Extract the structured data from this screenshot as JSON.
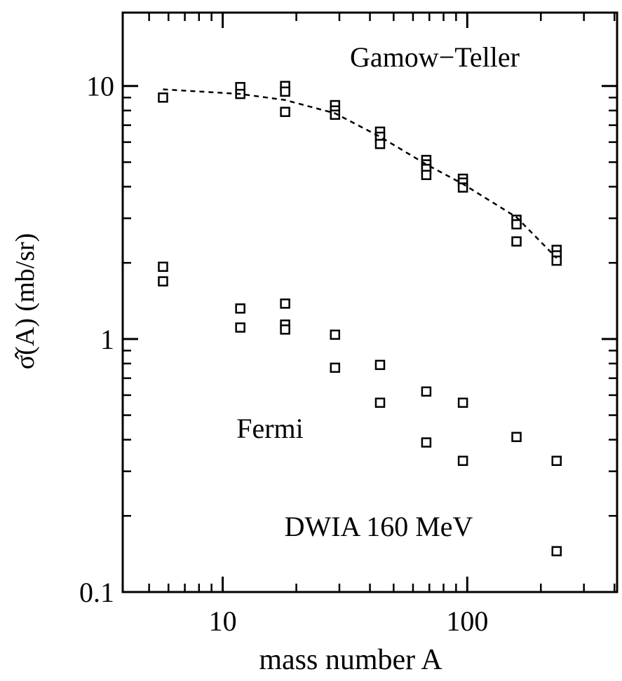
{
  "chart_data": {
    "type": "scatter",
    "x_label": "mass number A",
    "y_label": "σ̂(A) (mb/sr)",
    "annotations": [
      "Gamow−Teller",
      "Fermi",
      "DWIA  160 MeV"
    ],
    "log_x": true,
    "log_y": true,
    "xlim": [
      3.9,
      410
    ],
    "ylim": [
      0.1,
      19.5
    ],
    "xticks": [
      10,
      100
    ],
    "yticks": [
      0.1,
      1,
      10
    ],
    "xminor_ticks": [
      5,
      6,
      7,
      8,
      9,
      20,
      30,
      40,
      50,
      60,
      70,
      80,
      90,
      200,
      300,
      400
    ],
    "yminor_ticks": [
      0.2,
      0.3,
      0.4,
      0.5,
      0.6,
      0.7,
      0.8,
      0.9,
      2,
      3,
      4,
      5,
      6,
      7,
      8,
      9
    ],
    "series": [
      {
        "color": "#000000",
        "marker": "square",
        "x": [
          5.7,
          11.8,
          11.8,
          18,
          18,
          18,
          28.8,
          28.8,
          28.8,
          44,
          44,
          44,
          68,
          68,
          68,
          68,
          96,
          96,
          96,
          159,
          159,
          159,
          232,
          232,
          232
        ],
        "values": [
          9.0,
          9.9,
          9.3,
          10.0,
          9.5,
          7.9,
          8.4,
          8.0,
          7.7,
          6.6,
          6.3,
          5.9,
          5.1,
          4.9,
          4.7,
          4.45,
          4.3,
          4.15,
          3.97,
          2.96,
          2.84,
          2.43,
          2.25,
          2.14,
          2.04
        ]
      },
      {
        "color": "#000000",
        "marker": "square",
        "x": [
          5.7,
          5.7,
          11.8,
          11.8,
          18,
          18,
          18,
          28.8,
          28.8,
          44,
          44,
          68,
          68,
          96,
          96,
          159,
          232,
          232
        ],
        "values": [
          1.93,
          1.69,
          1.32,
          1.11,
          1.38,
          1.14,
          1.09,
          1.04,
          0.77,
          0.79,
          0.56,
          0.62,
          0.39,
          0.56,
          0.33,
          0.41,
          0.33,
          0.145
        ]
      },
      {
        "color": "#000000",
        "line_style": "dashed",
        "x": [
          5.7,
          11.8,
          18,
          28.8,
          44,
          68,
          96,
          159,
          232
        ],
        "values": [
          9.7,
          9.3,
          8.8,
          7.8,
          6.3,
          4.9,
          4.1,
          3.03,
          2.09
        ]
      }
    ]
  }
}
